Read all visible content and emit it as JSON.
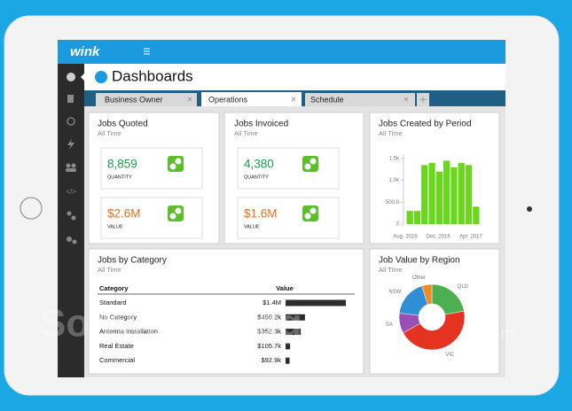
{
  "app": {
    "logo": "wink",
    "page_title": "Dashboards"
  },
  "tabs": [
    "Business Owner",
    "Operations",
    "Schedule"
  ],
  "cards": {
    "jobs_quoted": {
      "title": "Jobs Quoted",
      "subtitle": "All Time",
      "metrics": [
        {
          "value": "8,859",
          "label": "QUANTITY"
        },
        {
          "value": "$2.6M",
          "label": "VALUE"
        }
      ]
    },
    "jobs_invoiced": {
      "title": "Jobs Invoiced",
      "subtitle": "All Time",
      "metrics": [
        {
          "value": "4,380",
          "label": "QUANTITY"
        },
        {
          "value": "$1.6M",
          "label": "VALUE"
        }
      ]
    },
    "jobs_created": {
      "title": "Jobs Created by Period",
      "subtitle": "All Time",
      "type": "bar",
      "ylim": [
        0,
        1600
      ],
      "yticks": [
        {
          "value": 1500,
          "label": "1.5k"
        },
        {
          "value": 1000,
          "label": "1.0k"
        },
        {
          "value": 500,
          "label": "500.0"
        },
        0
      ],
      "x_labels": [
        "Aug. 2016",
        "Dec. 2016",
        "Apr. 2017"
      ],
      "values": [
        300,
        300,
        1350,
        1400,
        1200,
        1450,
        1300,
        1400,
        1350,
        400
      ],
      "color": "#6ad61d"
    },
    "jobs_by_category": {
      "title": "Jobs by Category",
      "subtitle": "All Time",
      "columns": [
        "Category",
        "Value"
      ],
      "rows": [
        {
          "category": "Standard",
          "value": 1400000,
          "value_label": "$1.4M"
        },
        {
          "category": "No Category",
          "value": 450200,
          "value_label": "$450.2k"
        },
        {
          "category": "Antenna Installation",
          "value": 352300,
          "value_label": "$352.3k"
        },
        {
          "category": "Real Estate",
          "value": 105700,
          "value_label": "$105.7k"
        },
        {
          "category": "Commercial",
          "value": 92900,
          "value_label": "$92.9k"
        }
      ],
      "bar_color": "#2d2d2d"
    },
    "job_value_by_region": {
      "title": "Job Value by Region",
      "subtitle": "All Time",
      "type": "pie",
      "regions": [
        {
          "name": "QLD",
          "value": 22,
          "color": "#4caf50"
        },
        {
          "name": "VIC",
          "value": 45,
          "color": "#e53322"
        },
        {
          "name": "SA",
          "value": 10,
          "color": "#9b4fb5"
        },
        {
          "name": "NSW",
          "value": 18,
          "color": "#2f8fd6"
        },
        {
          "name": "Other",
          "value": 5,
          "color": "#f08a24"
        }
      ]
    }
  },
  "watermark": [
    "SoftwareSuggest",
    ".com"
  ]
}
